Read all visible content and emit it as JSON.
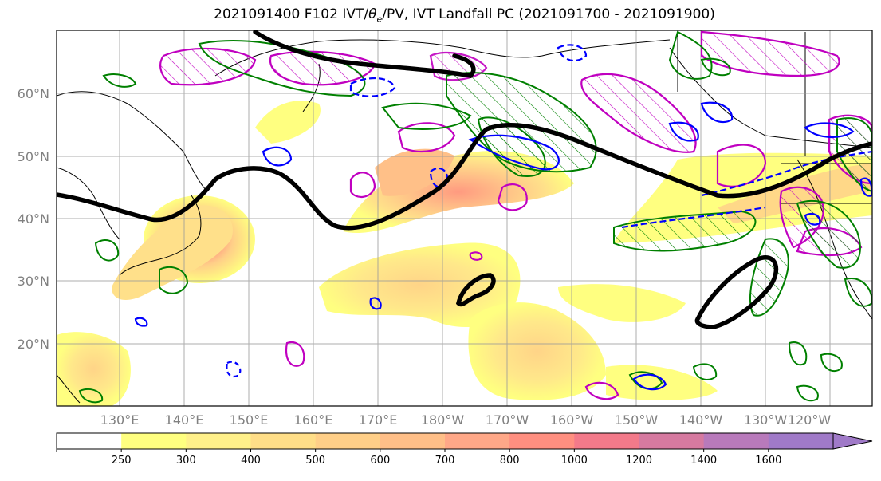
{
  "title": "2021091400 F102 IVT/θe/PV, IVT Landfall PC (2021091700 - 2021091900)",
  "title_parts": {
    "prefix": "2021091400 F102 IVT/",
    "theta": "θ",
    "theta_sub": "e",
    "suffix": "/PV, IVT Landfall PC (2021091700 - 2021091900)"
  },
  "map": {
    "lat_labels": [
      "60°N",
      "50°N",
      "40°N",
      "30°N",
      "20°N"
    ],
    "lon_labels": [
      "130°E",
      "140°E",
      "150°E",
      "160°E",
      "170°E",
      "180°W",
      "170°W",
      "160°W",
      "150°W",
      "140°W",
      "130°W",
      "120°W"
    ]
  },
  "colorbar": {
    "tick_labels": [
      "250",
      "300",
      "400",
      "500",
      "600",
      "700",
      "800",
      "1000",
      "1200",
      "1400",
      "1600"
    ],
    "colors": [
      "#ffffff",
      "#ffff80",
      "#fff08a",
      "#ffde88",
      "#ffcf88",
      "#ffbf88",
      "#ffa888",
      "#ff8f80",
      "#f37a8a",
      "#d67aa0",
      "#b87abb",
      "#a07ac8"
    ]
  },
  "colors": {
    "ivt_low": "#ffff80",
    "ivt_high": "#f07a7a",
    "jet_line": "#000000",
    "theta_contour": "#008000",
    "pv_contour": "#0000ff",
    "pc_contour": "#c000c0",
    "grid": "#999999",
    "axis_label": "#808080"
  }
}
